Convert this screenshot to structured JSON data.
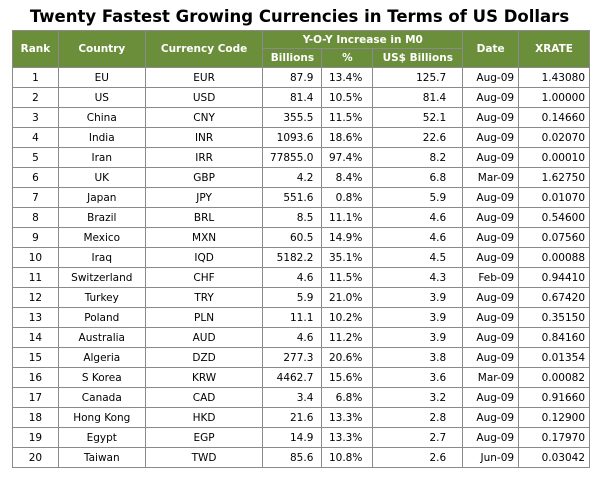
{
  "title": "Twenty Fastest Growing Currencies in Terms of US Dollars",
  "headers": {
    "rank": "Rank",
    "country": "Country",
    "currency_code": "Currency Code",
    "yoy_group": "Y-O-Y Increase in M0",
    "billions": "Billions",
    "pct": "%",
    "usd_billions": "US$ Billions",
    "date": "Date",
    "xrate": "XRATE"
  },
  "rows": [
    {
      "rank": "1",
      "country": "EU",
      "code": "EUR",
      "billions": "87.9",
      "pct": "13.4%",
      "usd": "125.7",
      "date": "Aug-09",
      "xrate": "1.43080"
    },
    {
      "rank": "2",
      "country": "US",
      "code": "USD",
      "billions": "81.4",
      "pct": "10.5%",
      "usd": "81.4",
      "date": "Aug-09",
      "xrate": "1.00000"
    },
    {
      "rank": "3",
      "country": "China",
      "code": "CNY",
      "billions": "355.5",
      "pct": "11.5%",
      "usd": "52.1",
      "date": "Aug-09",
      "xrate": "0.14660"
    },
    {
      "rank": "4",
      "country": "India",
      "code": "INR",
      "billions": "1093.6",
      "pct": "18.6%",
      "usd": "22.6",
      "date": "Aug-09",
      "xrate": "0.02070"
    },
    {
      "rank": "5",
      "country": "Iran",
      "code": "IRR",
      "billions": "77855.0",
      "pct": "97.4%",
      "usd": "8.2",
      "date": "Aug-09",
      "xrate": "0.00010"
    },
    {
      "rank": "6",
      "country": "UK",
      "code": "GBP",
      "billions": "4.2",
      "pct": "8.4%",
      "usd": "6.8",
      "date": "Mar-09",
      "xrate": "1.62750"
    },
    {
      "rank": "7",
      "country": "Japan",
      "code": "JPY",
      "billions": "551.6",
      "pct": "0.8%",
      "usd": "5.9",
      "date": "Aug-09",
      "xrate": "0.01070"
    },
    {
      "rank": "8",
      "country": "Brazil",
      "code": "BRL",
      "billions": "8.5",
      "pct": "11.1%",
      "usd": "4.6",
      "date": "Aug-09",
      "xrate": "0.54600"
    },
    {
      "rank": "9",
      "country": "Mexico",
      "code": "MXN",
      "billions": "60.5",
      "pct": "14.9%",
      "usd": "4.6",
      "date": "Aug-09",
      "xrate": "0.07560"
    },
    {
      "rank": "10",
      "country": "Iraq",
      "code": "IQD",
      "billions": "5182.2",
      "pct": "35.1%",
      "usd": "4.5",
      "date": "Aug-09",
      "xrate": "0.00088"
    },
    {
      "rank": "11",
      "country": "Switzerland",
      "code": "CHF",
      "billions": "4.6",
      "pct": "11.5%",
      "usd": "4.3",
      "date": "Feb-09",
      "xrate": "0.94410"
    },
    {
      "rank": "12",
      "country": "Turkey",
      "code": "TRY",
      "billions": "5.9",
      "pct": "21.0%",
      "usd": "3.9",
      "date": "Aug-09",
      "xrate": "0.67420"
    },
    {
      "rank": "13",
      "country": "Poland",
      "code": "PLN",
      "billions": "11.1",
      "pct": "10.2%",
      "usd": "3.9",
      "date": "Aug-09",
      "xrate": "0.35150"
    },
    {
      "rank": "14",
      "country": "Australia",
      "code": "AUD",
      "billions": "4.6",
      "pct": "11.2%",
      "usd": "3.9",
      "date": "Aug-09",
      "xrate": "0.84160"
    },
    {
      "rank": "15",
      "country": "Algeria",
      "code": "DZD",
      "billions": "277.3",
      "pct": "20.6%",
      "usd": "3.8",
      "date": "Aug-09",
      "xrate": "0.01354"
    },
    {
      "rank": "16",
      "country": "S Korea",
      "code": "KRW",
      "billions": "4462.7",
      "pct": "15.6%",
      "usd": "3.6",
      "date": "Mar-09",
      "xrate": "0.00082"
    },
    {
      "rank": "17",
      "country": "Canada",
      "code": "CAD",
      "billions": "3.4",
      "pct": "6.8%",
      "usd": "3.2",
      "date": "Aug-09",
      "xrate": "0.91660"
    },
    {
      "rank": "18",
      "country": "Hong Kong",
      "code": "HKD",
      "billions": "21.6",
      "pct": "13.3%",
      "usd": "2.8",
      "date": "Aug-09",
      "xrate": "0.12900"
    },
    {
      "rank": "19",
      "country": "Egypt",
      "code": "EGP",
      "billions": "14.9",
      "pct": "13.3%",
      "usd": "2.7",
      "date": "Aug-09",
      "xrate": "0.17970"
    },
    {
      "rank": "20",
      "country": "Taiwan",
      "code": "TWD",
      "billions": "85.6",
      "pct": "10.8%",
      "usd": "2.6",
      "date": "Jun-09",
      "xrate": "0.03042"
    }
  ],
  "colors": {
    "header_bg": "#6b8e3a",
    "header_text": "#ffffff",
    "border": "#8a8a8a"
  }
}
